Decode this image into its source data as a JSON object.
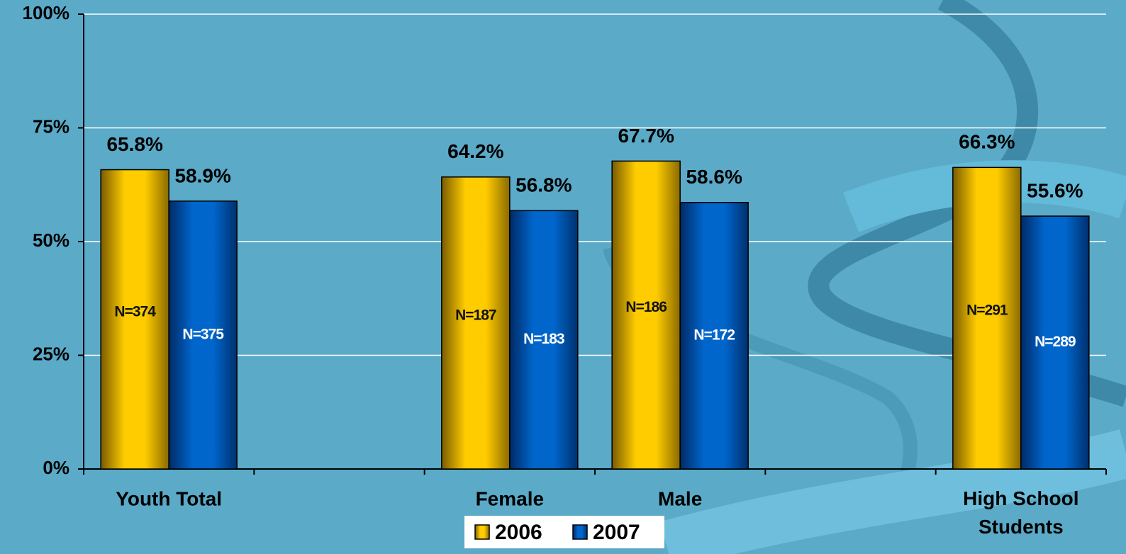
{
  "chart_data": {
    "type": "bar",
    "categories": [
      "Youth Total",
      null,
      "Female",
      "Male",
      null,
      "High School Students"
    ],
    "series": [
      {
        "name": "2006",
        "color": "#ffcc00",
        "values": [
          65.8,
          null,
          64.2,
          67.7,
          null,
          66.3
        ],
        "value_labels": [
          "65.8%",
          null,
          "64.2%",
          "67.7%",
          null,
          "66.3%"
        ],
        "annotations": [
          "N=374",
          null,
          "N=187",
          "N=186",
          null,
          "N=291"
        ]
      },
      {
        "name": "2007",
        "color": "#0066cc",
        "values": [
          58.9,
          null,
          56.8,
          58.6,
          null,
          55.6
        ],
        "value_labels": [
          "58.9%",
          null,
          "56.8%",
          "58.6%",
          null,
          "55.6%"
        ],
        "annotations": [
          "N=375",
          null,
          "N=183",
          "N=172",
          null,
          "N=289"
        ]
      }
    ],
    "ylim": [
      0,
      100
    ],
    "yticks": [
      {
        "value": 0,
        "label": "0%"
      },
      {
        "value": 25,
        "label": "25%"
      },
      {
        "value": 50,
        "label": "50%"
      },
      {
        "value": 75,
        "label": "75%"
      },
      {
        "value": 100,
        "label": "100%"
      }
    ],
    "grid": true,
    "legend": "bottom"
  }
}
